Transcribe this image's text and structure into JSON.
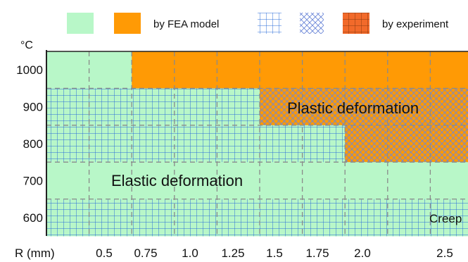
{
  "chart_data": {
    "type": "heatmap",
    "y_unit": "°C",
    "x_label": "R (mm)",
    "x_ticks": [
      "0.5",
      "0.75",
      "1.0",
      "1.25",
      "1.5",
      "1.75",
      "2.0",
      "2.5"
    ],
    "y_ticks": [
      "1000",
      "900",
      "800",
      "700",
      "600"
    ],
    "legend": [
      {
        "key": "elastic-fea",
        "label": "",
        "fill": "#b8f7c8",
        "pattern": "solid"
      },
      {
        "key": "plastic-fea",
        "label": "by FEA model",
        "fill": "#ff9a05",
        "pattern": "solid"
      },
      {
        "key": "elastic-exp",
        "label": "",
        "fill": "#b8f7c8",
        "pattern": "grid"
      },
      {
        "key": "plastic-exp",
        "label": "",
        "fill": "#ff9a05",
        "pattern": "crosshatch"
      },
      {
        "key": "creep-exp",
        "label": "by experiment",
        "fill": "#f26a2a",
        "pattern": "grid"
      }
    ],
    "rows": [
      {
        "temperature": "1000",
        "cells": [
          "elastic-fea",
          "elastic-fea",
          "plastic-fea",
          "plastic-fea",
          "plastic-fea",
          "plastic-fea",
          "plastic-fea",
          "plastic-fea",
          "plastic-fea",
          "plastic-fea",
          "plastic-fea"
        ]
      },
      {
        "temperature": "900",
        "cells": [
          "elastic-exp",
          "elastic-exp",
          "elastic-exp",
          "elastic-exp",
          "elastic-exp",
          "plastic-exp",
          "plastic-exp",
          "plastic-exp",
          "plastic-exp",
          "plastic-exp",
          "plastic-exp"
        ]
      },
      {
        "temperature": "800",
        "cells": [
          "elastic-exp",
          "elastic-exp",
          "elastic-exp",
          "elastic-exp",
          "elastic-exp",
          "elastic-exp",
          "elastic-exp",
          "plastic-exp",
          "plastic-exp",
          "plastic-exp",
          "plastic-exp"
        ]
      },
      {
        "temperature": "700",
        "cells": [
          "elastic-fea",
          "elastic-fea",
          "elastic-fea",
          "elastic-fea",
          "elastic-fea",
          "elastic-fea",
          "elastic-fea",
          "elastic-fea",
          "elastic-fea",
          "elastic-fea",
          "elastic-fea"
        ]
      },
      {
        "temperature": "600",
        "cells": [
          "elastic-exp",
          "elastic-exp",
          "elastic-exp",
          "elastic-exp",
          "elastic-exp",
          "elastic-exp",
          "elastic-exp",
          "elastic-exp",
          "elastic-exp",
          "elastic-exp",
          "creep-exp"
        ]
      }
    ],
    "region_labels": {
      "plastic": "Plastic deformation",
      "elastic": "Elastic deformation",
      "creep": "Creep"
    },
    "grid": true
  }
}
